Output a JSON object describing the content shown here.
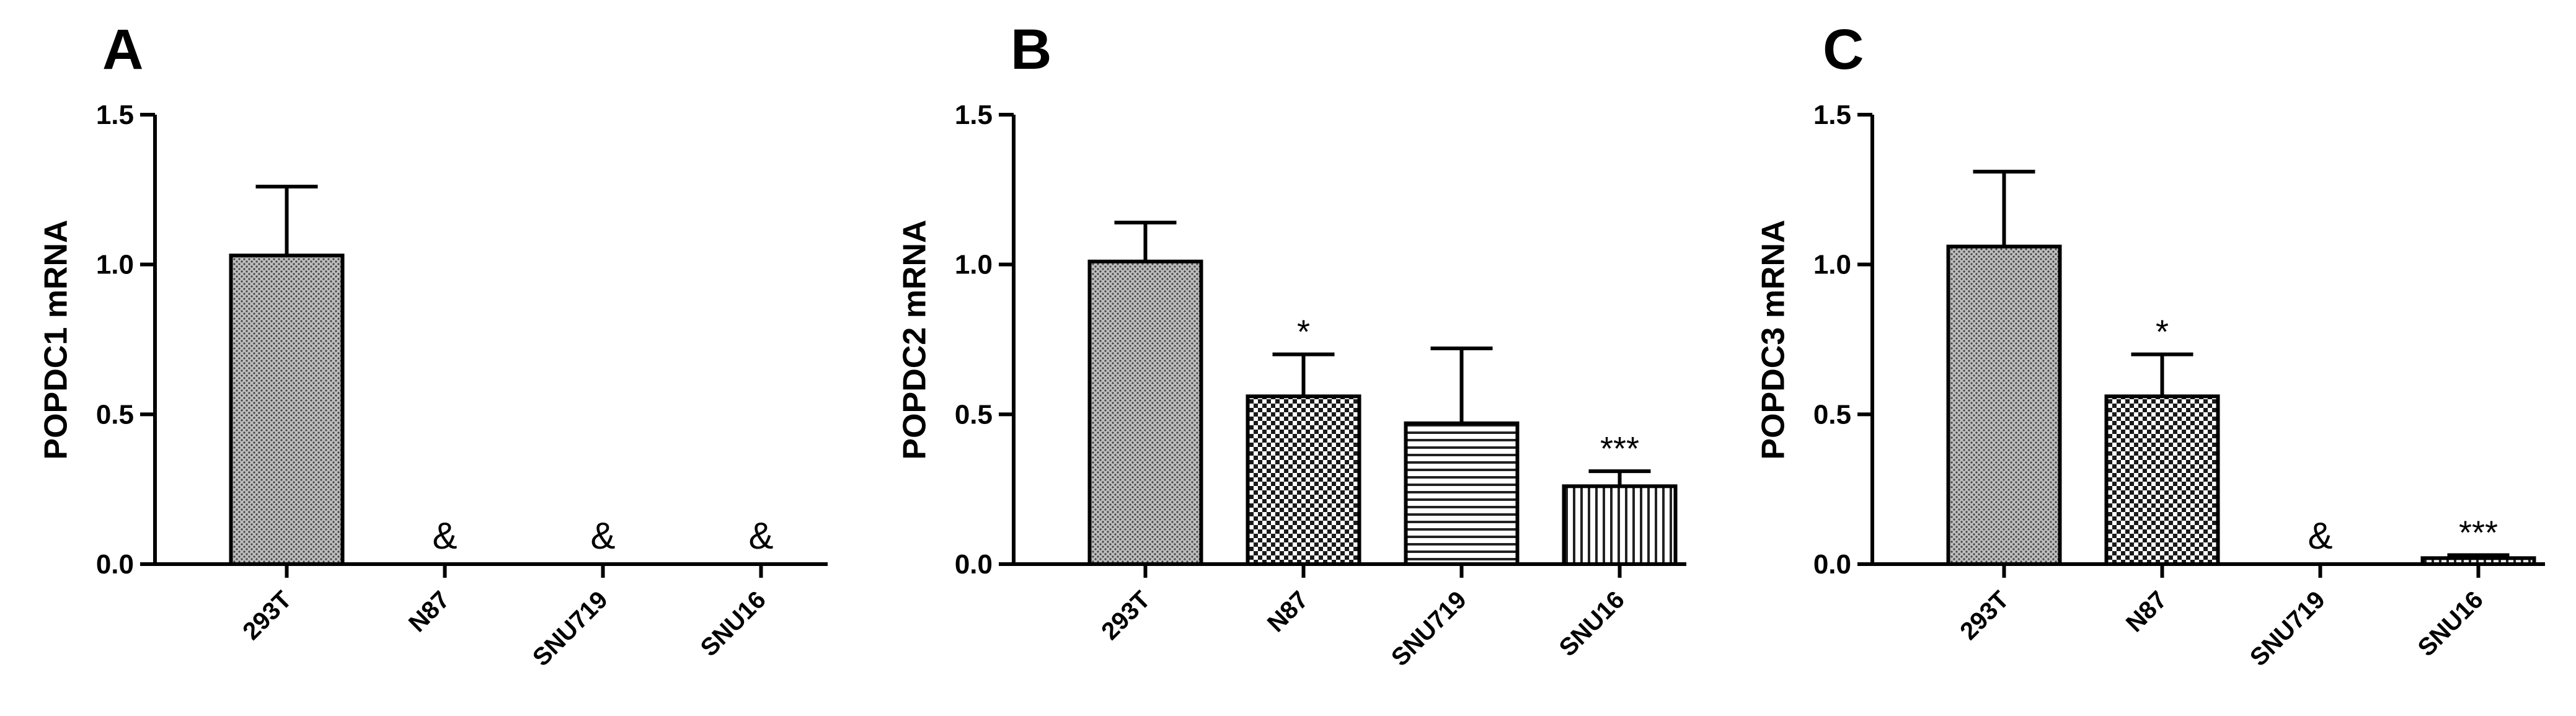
{
  "chart_data": [
    {
      "type": "bar",
      "panel_label": "A",
      "ylabel": "POPDC1 mRNA",
      "categories": [
        "293T",
        "N87",
        "SNU719",
        "SNU16"
      ],
      "values": [
        1.03,
        0,
        0,
        0
      ],
      "errors": [
        0.23,
        0,
        0,
        0
      ],
      "annotations": [
        "",
        "&",
        "&",
        "&"
      ],
      "patterns": [
        "dots",
        "none",
        "none",
        "none"
      ],
      "ylim": [
        0,
        1.5
      ],
      "yticks": [
        "0.0",
        "0.5",
        "1.0",
        "1.5"
      ]
    },
    {
      "type": "bar",
      "panel_label": "B",
      "ylabel": "POPDC2  mRNA",
      "categories": [
        "293T",
        "N87",
        "SNU719",
        "SNU16"
      ],
      "values": [
        1.01,
        0.56,
        0.47,
        0.26
      ],
      "errors": [
        0.13,
        0.14,
        0.25,
        0.05
      ],
      "annotations": [
        "",
        "*",
        "",
        "***"
      ],
      "patterns": [
        "dots",
        "checker",
        "hlines",
        "vlines"
      ],
      "ylim": [
        0,
        1.5
      ],
      "yticks": [
        "0.0",
        "0.5",
        "1.0",
        "1.5"
      ]
    },
    {
      "type": "bar",
      "panel_label": "C",
      "ylabel": "POPDC3 mRNA",
      "categories": [
        "293T",
        "N87",
        "SNU719",
        "SNU16"
      ],
      "values": [
        1.06,
        0.56,
        0,
        0.02
      ],
      "errors": [
        0.25,
        0.14,
        0,
        0.01
      ],
      "annotations": [
        "",
        "*",
        "&",
        "***"
      ],
      "patterns": [
        "dots",
        "checker",
        "none",
        "vlines"
      ],
      "ylim": [
        0,
        1.5
      ],
      "yticks": [
        "0.0",
        "0.5",
        "1.0",
        "1.5"
      ]
    }
  ]
}
